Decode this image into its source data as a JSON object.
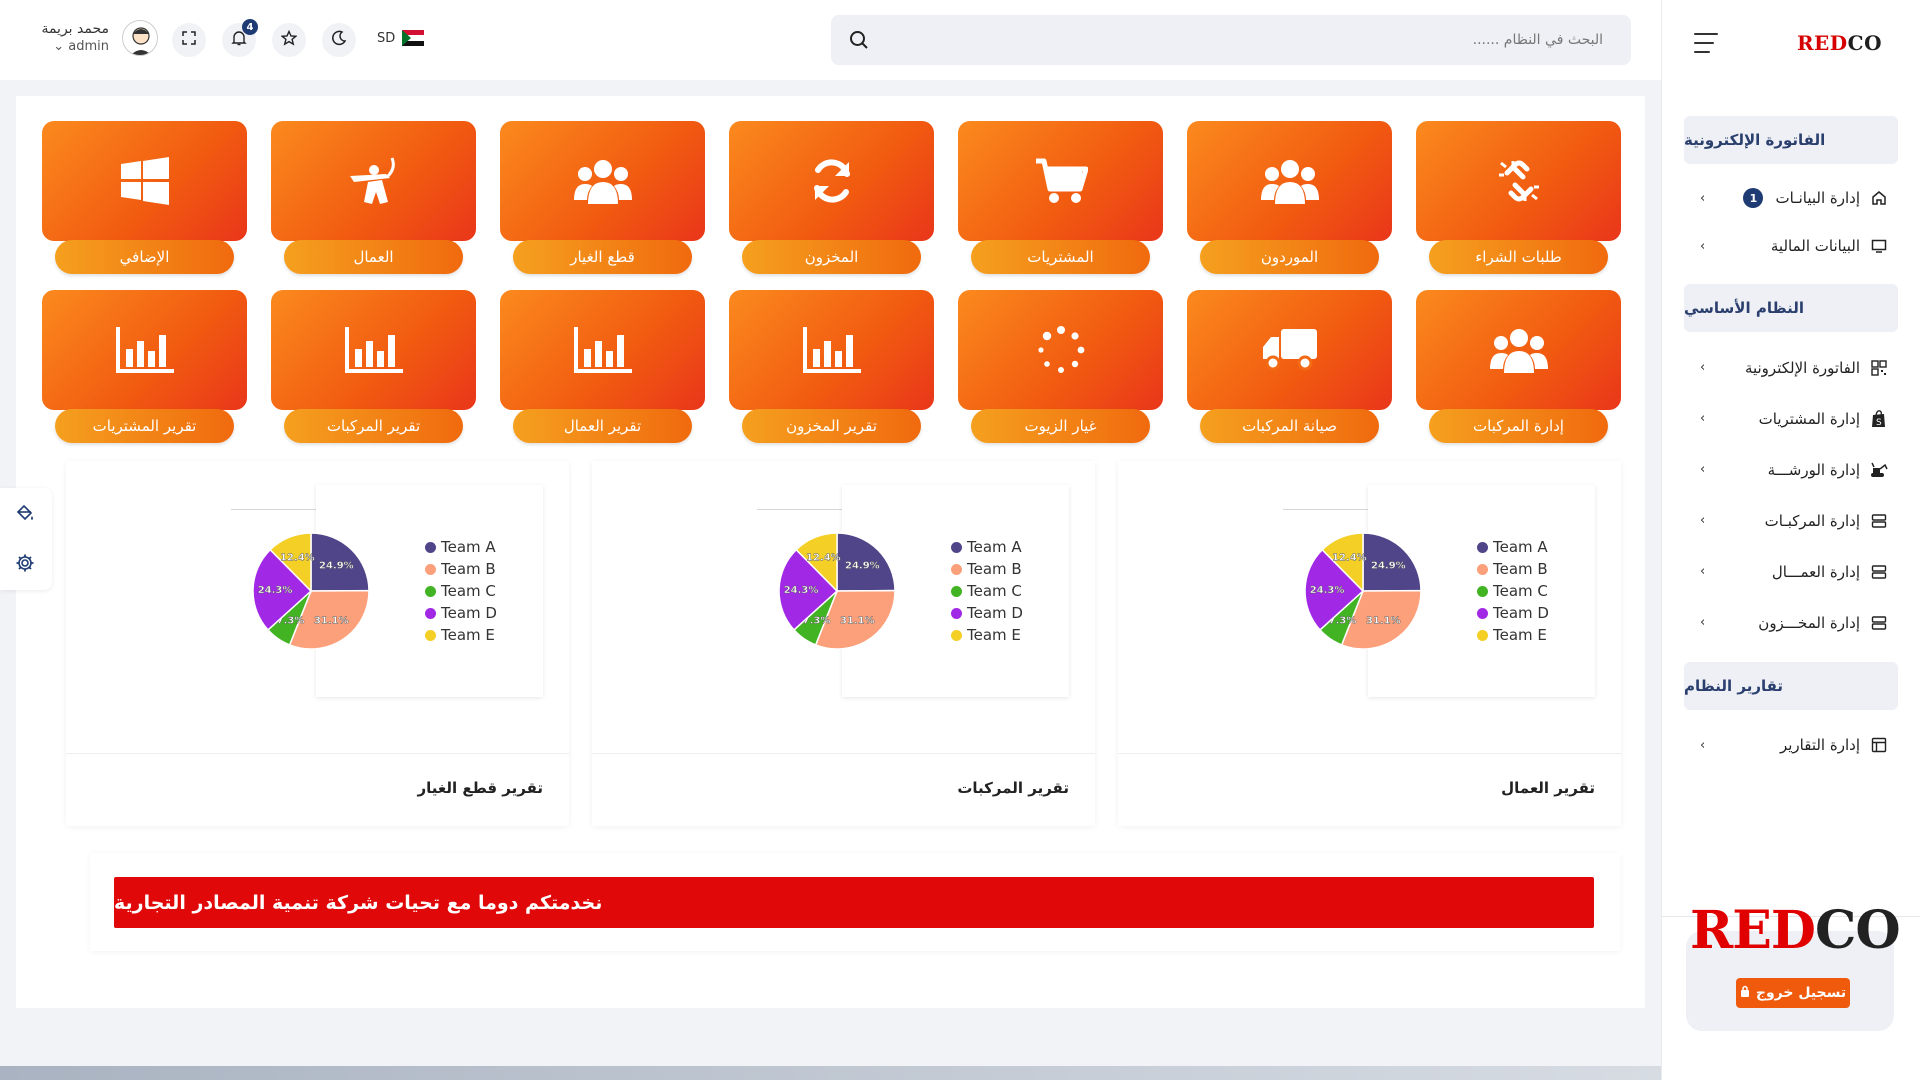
{
  "sidebar": {
    "logo": {
      "red": "RED",
      "dark": "CO"
    },
    "sections": [
      {
        "title": "الفاتورة الإلكترونية",
        "items": [
          {
            "label": "إدارة البيانـات",
            "icon": "home-icon",
            "badge": "1"
          },
          {
            "label": "البيانات المالية",
            "icon": "monitor-icon"
          }
        ]
      },
      {
        "title": "النظام الأساسي",
        "items": [
          {
            "label": "الفاتورة الإلكترونية",
            "icon": "qr-code-icon"
          },
          {
            "label": "إدارة المشتريات",
            "icon": "shopify-bag-icon"
          },
          {
            "label": "إدارة الورشـــة",
            "icon": "excavator-icon"
          },
          {
            "label": "إدارة المركبـات",
            "icon": "server-icon"
          },
          {
            "label": "إدارة العمـــال",
            "icon": "server-icon"
          },
          {
            "label": "إدارة المخـــزون",
            "icon": "server-icon"
          }
        ]
      },
      {
        "title": "تقارير النظام",
        "items": [
          {
            "label": "إدارة التقارير",
            "icon": "report-icon"
          }
        ]
      }
    ],
    "footer": {
      "logo_red": "RED",
      "logo_dark": "CO",
      "logout": "تسجيل خروج"
    }
  },
  "header": {
    "search_placeholder": "البحث في النظام ......",
    "notifications_count": "4",
    "language": "SD",
    "user_name": "محمد بريمة",
    "user_role": "admin"
  },
  "tiles_row1": [
    {
      "label": "طلبات الشراء",
      "icon": "broken-link-icon"
    },
    {
      "label": "الموردون",
      "icon": "users-icon"
    },
    {
      "label": "المشتريات",
      "icon": "cart-icon"
    },
    {
      "label": "المخزون",
      "icon": "sync-icon"
    },
    {
      "label": "قطع الغيار",
      "icon": "users-icon"
    },
    {
      "label": "العمال",
      "icon": "worker-icon"
    },
    {
      "label": "الإضافي",
      "icon": "windows-icon"
    }
  ],
  "tiles_row2": [
    {
      "label": "إدارة المركبات",
      "icon": "users-icon"
    },
    {
      "label": "صيانة المركبات",
      "icon": "truck-icon"
    },
    {
      "label": "غيار الزيوت",
      "icon": "spinner-icon"
    },
    {
      "label": "تقرير المخزون",
      "icon": "bar-chart-icon"
    },
    {
      "label": "تقرير العمال",
      "icon": "bar-chart-icon"
    },
    {
      "label": "تقرير المركبات",
      "icon": "bar-chart-icon"
    },
    {
      "label": "تقرير المشتريات",
      "icon": "bar-chart-icon"
    }
  ],
  "charts": [
    {
      "title": "تقرير العمال"
    },
    {
      "title": "تقرير المركبات"
    },
    {
      "title": "تقرير قطع الغيار"
    }
  ],
  "chart_data": {
    "type": "pie",
    "categories": [
      "Team A",
      "Team B",
      "Team C",
      "Team D",
      "Team E"
    ],
    "values": [
      24.9,
      31.1,
      7.3,
      24.3,
      12.4
    ],
    "labels": [
      "24.9%",
      "31.1%",
      "7.3%",
      "24.3%",
      "12.4%"
    ],
    "colors": [
      "#51458a",
      "#fba07a",
      "#42b424",
      "#a129e6",
      "#f4cf26"
    ],
    "legend": "right"
  },
  "banner": {
    "text": "نخدمتكم دوما مع تحيات شركة تنمية المصادر التجارية"
  }
}
